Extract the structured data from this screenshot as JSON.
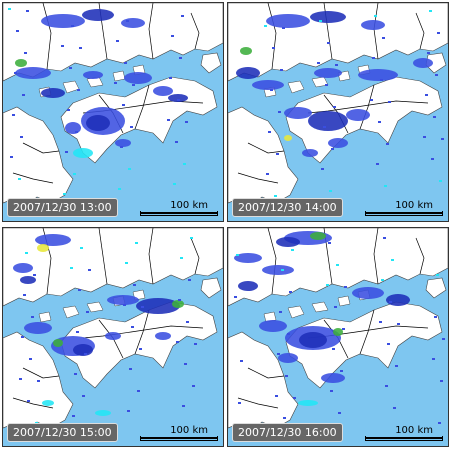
{
  "panels": [
    {
      "timestamp": "2007/12/30 13:00",
      "scale_label": "100 km"
    },
    {
      "timestamp": "2007/12/30 14:00",
      "scale_label": "100 km"
    },
    {
      "timestamp": "2007/12/30 15:00",
      "scale_label": "100 km"
    },
    {
      "timestamp": "2007/12/30 16:00",
      "scale_label": "100 km"
    }
  ],
  "colors": {
    "sea": "#7ec6f0",
    "land": "#ffffff",
    "radar_light": "#3a4ee0",
    "radar_dark": "#1e2fb8",
    "radar_cyan": "#22e6f5",
    "radar_green": "#3cae3c",
    "radar_yellow": "#e8e83a",
    "boundary": "#000000"
  }
}
